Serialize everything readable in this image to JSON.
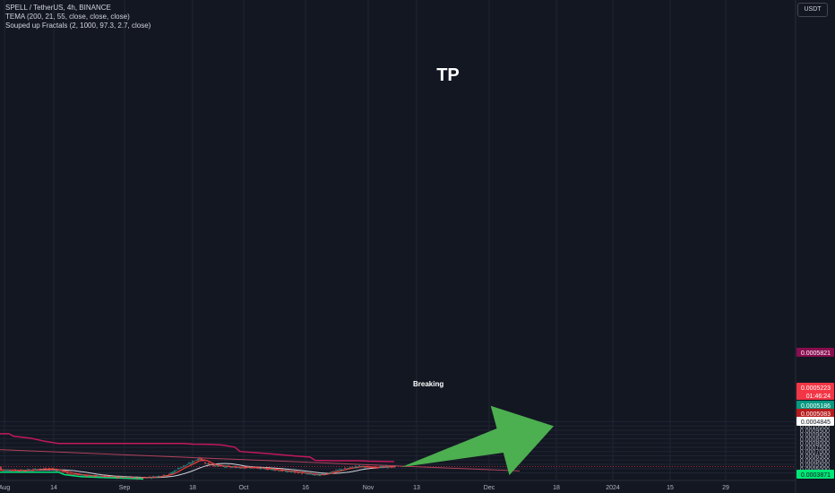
{
  "legend": {
    "symbol": "SPELL / TetherUS, 4h, BINANCE",
    "indicator1": "TEMA (200, 21, 55, close, close, close)",
    "indicator2": "Souped up Fractals (2, 1000, 97.3, 2.7, close)"
  },
  "currency_label": "USDT",
  "annotations": {
    "tp": "TP",
    "breaking": "Breaking"
  },
  "colors": {
    "background": "#131722",
    "grid": "#1f2433",
    "axis_text": "#b2b5be",
    "up_candle": "#26a69a",
    "down_candle": "#ef5350",
    "upper_fractal": "#c2185b",
    "tema_red": "#e53935",
    "tema_white": "#d1d4dc",
    "lower_fractal": "#00e676",
    "trendline": "#b0415a",
    "arrow": "#4caf50"
  },
  "chart_data": {
    "type": "candlestick",
    "symbol": "SPELL / TetherUS",
    "interval": "4h",
    "exchange": "BINANCE",
    "x_ticks": [
      "Aug",
      "14",
      "Sep",
      "18",
      "Oct",
      "16",
      "Nov",
      "13",
      "Dec",
      "18",
      "2024",
      "15",
      "29"
    ],
    "y_ticks": [
      "0.0010500",
      "0.0010000",
      "0.0009500",
      "0.0009000",
      "0.0008500",
      "0.0008000",
      "0.0007500",
      "0.0007000",
      "0.0006500",
      "0.0006000",
      "0.0005500",
      "0.0005000",
      "0.0004500"
    ],
    "ylim": [
      0.00038,
      0.00108
    ],
    "price_labels": [
      {
        "text": "0.0005821",
        "value": 0.0005821,
        "color": "#880e4f",
        "text_color": "#ffffff"
      },
      {
        "text": "0.0005223",
        "value": 0.0005223,
        "color": "#f23645",
        "text_color": "#ffffff"
      },
      {
        "text": "01:46:24",
        "value": 0.0005223,
        "color": "#f23645",
        "text_color": "#ffffff"
      },
      {
        "text": "0.0005186",
        "value": 0.0005186,
        "color": "#089981",
        "text_color": "#ffffff"
      },
      {
        "text": "0.0005083",
        "value": 0.0005083,
        "color": "#b71c1c",
        "text_color": "#ffffff"
      },
      {
        "text": "0.0004845",
        "value": 0.0004845,
        "color": "#ffffff",
        "text_color": "#131722"
      },
      {
        "text": "0.0003871",
        "value": 0.0003871,
        "color": "#00e676",
        "text_color": "#131722"
      }
    ],
    "upper_fractal_series": [
      [
        0,
        0.000908
      ],
      [
        10,
        0.000908
      ],
      [
        15,
        0.00088
      ],
      [
        35,
        0.000855
      ],
      [
        50,
        0.00082
      ],
      [
        65,
        0.000795
      ],
      [
        120,
        0.000795
      ],
      [
        205,
        0.000795
      ],
      [
        215,
        0.000787
      ],
      [
        235,
        0.000783
      ],
      [
        248,
        0.000776
      ],
      [
        262,
        0.000752
      ],
      [
        268,
        0.0007
      ],
      [
        300,
        0.000675
      ],
      [
        330,
        0.000648
      ],
      [
        346,
        0.000635
      ],
      [
        352,
        0.000597
      ],
      [
        372,
        0.000592
      ],
      [
        400,
        0.000592
      ],
      [
        412,
        0.000587
      ],
      [
        425,
        0.000585
      ],
      [
        440,
        0.000582
      ]
    ],
    "trendline": [
      [
        0,
        0.000722
      ],
      [
        580,
        0.000473
      ]
    ],
    "arrow_from": [
      448,
      0.000518
    ],
    "arrow_tip": [
      618,
      0.000998
    ]
  }
}
